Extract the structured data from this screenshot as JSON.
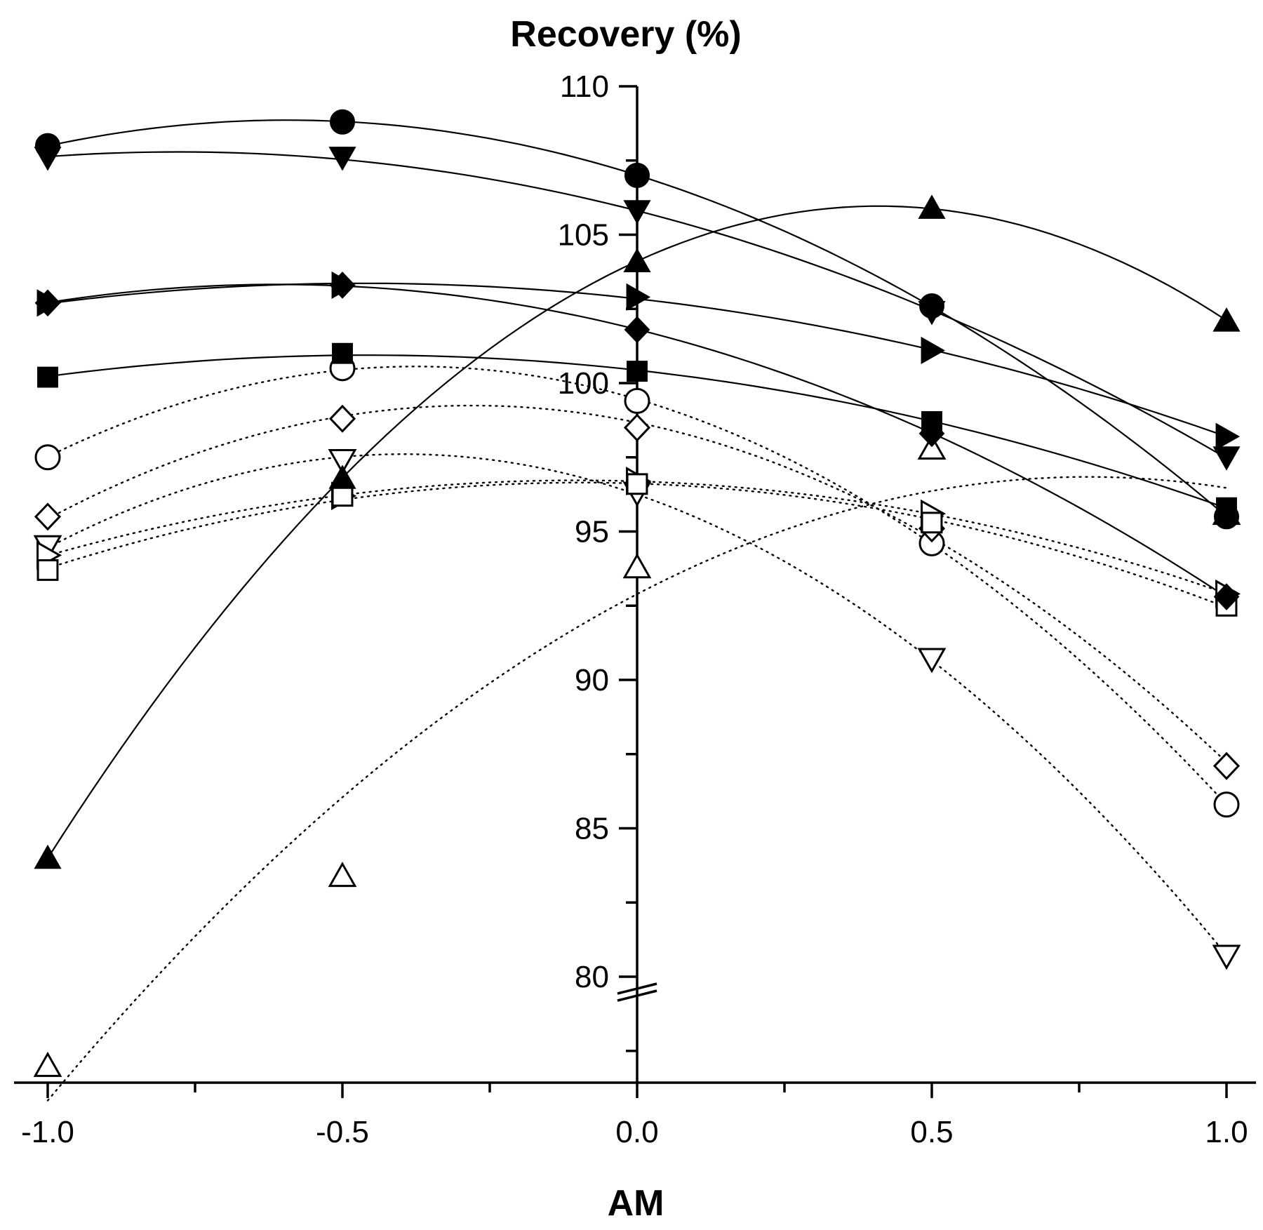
{
  "chart_data": {
    "type": "scatter",
    "title": "",
    "xlabel": "AM",
    "ylabel": "Recovery (%)",
    "xlim": [
      -1.05,
      1.05
    ],
    "ylim": [
      76.5,
      110
    ],
    "axis_break_y": 80,
    "x": [
      -1.0,
      -0.5,
      0.0,
      0.5,
      1.0
    ],
    "x_ticks": [
      -1.0,
      -0.5,
      0.0,
      0.5,
      1.0
    ],
    "x_tick_labels": [
      "-1.0",
      "-0.5",
      "0.0",
      "0.5",
      "1.0"
    ],
    "y_ticks": [
      80,
      85,
      90,
      95,
      100,
      105,
      110
    ],
    "y_tick_labels": [
      "80",
      "85",
      "90",
      "95",
      "100",
      "105",
      "110"
    ],
    "grid": false,
    "series": [
      {
        "marker": "circle",
        "filled": true,
        "line": "solid",
        "values": [
          108.0,
          108.8,
          107.0,
          102.6,
          95.5
        ]
      },
      {
        "marker": "triangle-down",
        "filled": true,
        "line": "solid",
        "values": [
          107.6,
          107.6,
          105.8,
          102.4,
          97.5
        ]
      },
      {
        "marker": "triangle-up",
        "filled": true,
        "line": "solid",
        "values": [
          84.0,
          96.8,
          104.1,
          105.9,
          102.1
        ]
      },
      {
        "marker": "triangle-right",
        "filled": true,
        "line": "solid",
        "values": [
          102.7,
          103.3,
          102.9,
          101.1,
          98.2
        ]
      },
      {
        "marker": "diamond",
        "filled": true,
        "line": "solid",
        "values": [
          102.7,
          103.3,
          101.8,
          98.3,
          92.8
        ]
      },
      {
        "marker": "square",
        "filled": true,
        "line": "solid",
        "values": [
          100.2,
          101.0,
          100.4,
          98.7,
          95.8
        ]
      },
      {
        "marker": "circle",
        "filled": false,
        "line": "dotted",
        "values": [
          97.5,
          100.5,
          99.4,
          94.6,
          85.8
        ]
      },
      {
        "marker": "diamond",
        "filled": false,
        "line": "dotted",
        "values": [
          95.5,
          98.8,
          98.5,
          95.1,
          87.1
        ]
      },
      {
        "marker": "triangle-down",
        "filled": false,
        "line": "dotted",
        "values": [
          94.5,
          97.4,
          96.3,
          90.7,
          80.7
        ]
      },
      {
        "marker": "triangle-right",
        "filled": false,
        "line": "dotted",
        "values": [
          94.2,
          96.2,
          96.7,
          95.6,
          92.9
        ]
      },
      {
        "marker": "square",
        "filled": false,
        "line": "dotted",
        "values": [
          93.7,
          96.2,
          96.6,
          95.3,
          92.5
        ]
      },
      {
        "marker": "triangle-up",
        "filled": false,
        "line": "dotted",
        "values": [
          77.0,
          83.4,
          93.8,
          97.8,
          95.6
        ]
      }
    ]
  }
}
